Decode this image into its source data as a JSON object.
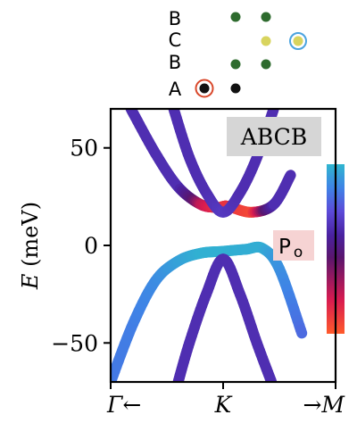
{
  "chart_data": {
    "type": "line",
    "title": "ABCB",
    "xlabel": "",
    "ylabel": "E (meV)",
    "ylim": [
      -70,
      70
    ],
    "y_ticks": [
      50,
      0,
      -50
    ],
    "y_tick_labels": [
      "50",
      "0",
      "−50"
    ],
    "x_range": [
      -1,
      1
    ],
    "x_ticks": [
      -1,
      0,
      1
    ],
    "x_tick_labels": [
      "Γ←",
      "K",
      "→M"
    ],
    "grid": false,
    "colorbar_label": "P",
    "colorbar_label_sub": "o",
    "colorbar_colors": [
      "#ff5a2b",
      "#d81b50",
      "#5a166e",
      "#4a22a0",
      "#5c4ad8",
      "#3f83e6",
      "#2fb6cf"
    ],
    "series": [
      {
        "x": [
          -0.82,
          -0.6,
          -0.4,
          -0.2,
          -0.05,
          0.0,
          0.05,
          0.25,
          0.45,
          0.6
        ],
        "y": [
          70,
          47,
          30,
          21,
          19.5,
          20,
          20,
          17,
          21,
          36
        ],
        "p": [
          0.55,
          0.55,
          0.55,
          0.2,
          0.1,
          0.1,
          0.1,
          0.05,
          0.55,
          0.55
        ]
      },
      {
        "x": [
          -0.44,
          -0.3,
          -0.15,
          0.0,
          0.15,
          0.3,
          0.45
        ],
        "y": [
          70,
          45,
          27,
          17,
          27,
          45,
          70
        ],
        "p": [
          0.55,
          0.55,
          0.55,
          0.6,
          0.55,
          0.55,
          0.55
        ]
      },
      {
        "x": [
          -1.0,
          -0.8,
          -0.6,
          -0.4,
          -0.2,
          0.0,
          0.2,
          0.35,
          0.5,
          0.7
        ],
        "y": [
          -70,
          -40,
          -18,
          -8,
          -4,
          -3,
          -2,
          -1.5,
          -12,
          -45
        ],
        "p": [
          0.8,
          0.82,
          0.86,
          0.93,
          0.98,
          0.98,
          0.97,
          0.97,
          0.88,
          0.75
        ]
      },
      {
        "x": [
          -0.4,
          -0.3,
          -0.15,
          0.0,
          0.15,
          0.3,
          0.43
        ],
        "y": [
          -70,
          -50,
          -25,
          -7,
          -25,
          -50,
          -70
        ],
        "p": [
          0.55,
          0.55,
          0.55,
          0.55,
          0.55,
          0.55,
          0.55
        ]
      }
    ]
  },
  "stacking": {
    "labels": [
      "B",
      "C",
      "B",
      "A"
    ],
    "layer_colors": [
      "#2e6b2e",
      "#d8d45e",
      "#2e6b2e",
      "#111111"
    ],
    "ring_colors": [
      "#4aa3df",
      "#d9482b"
    ]
  }
}
